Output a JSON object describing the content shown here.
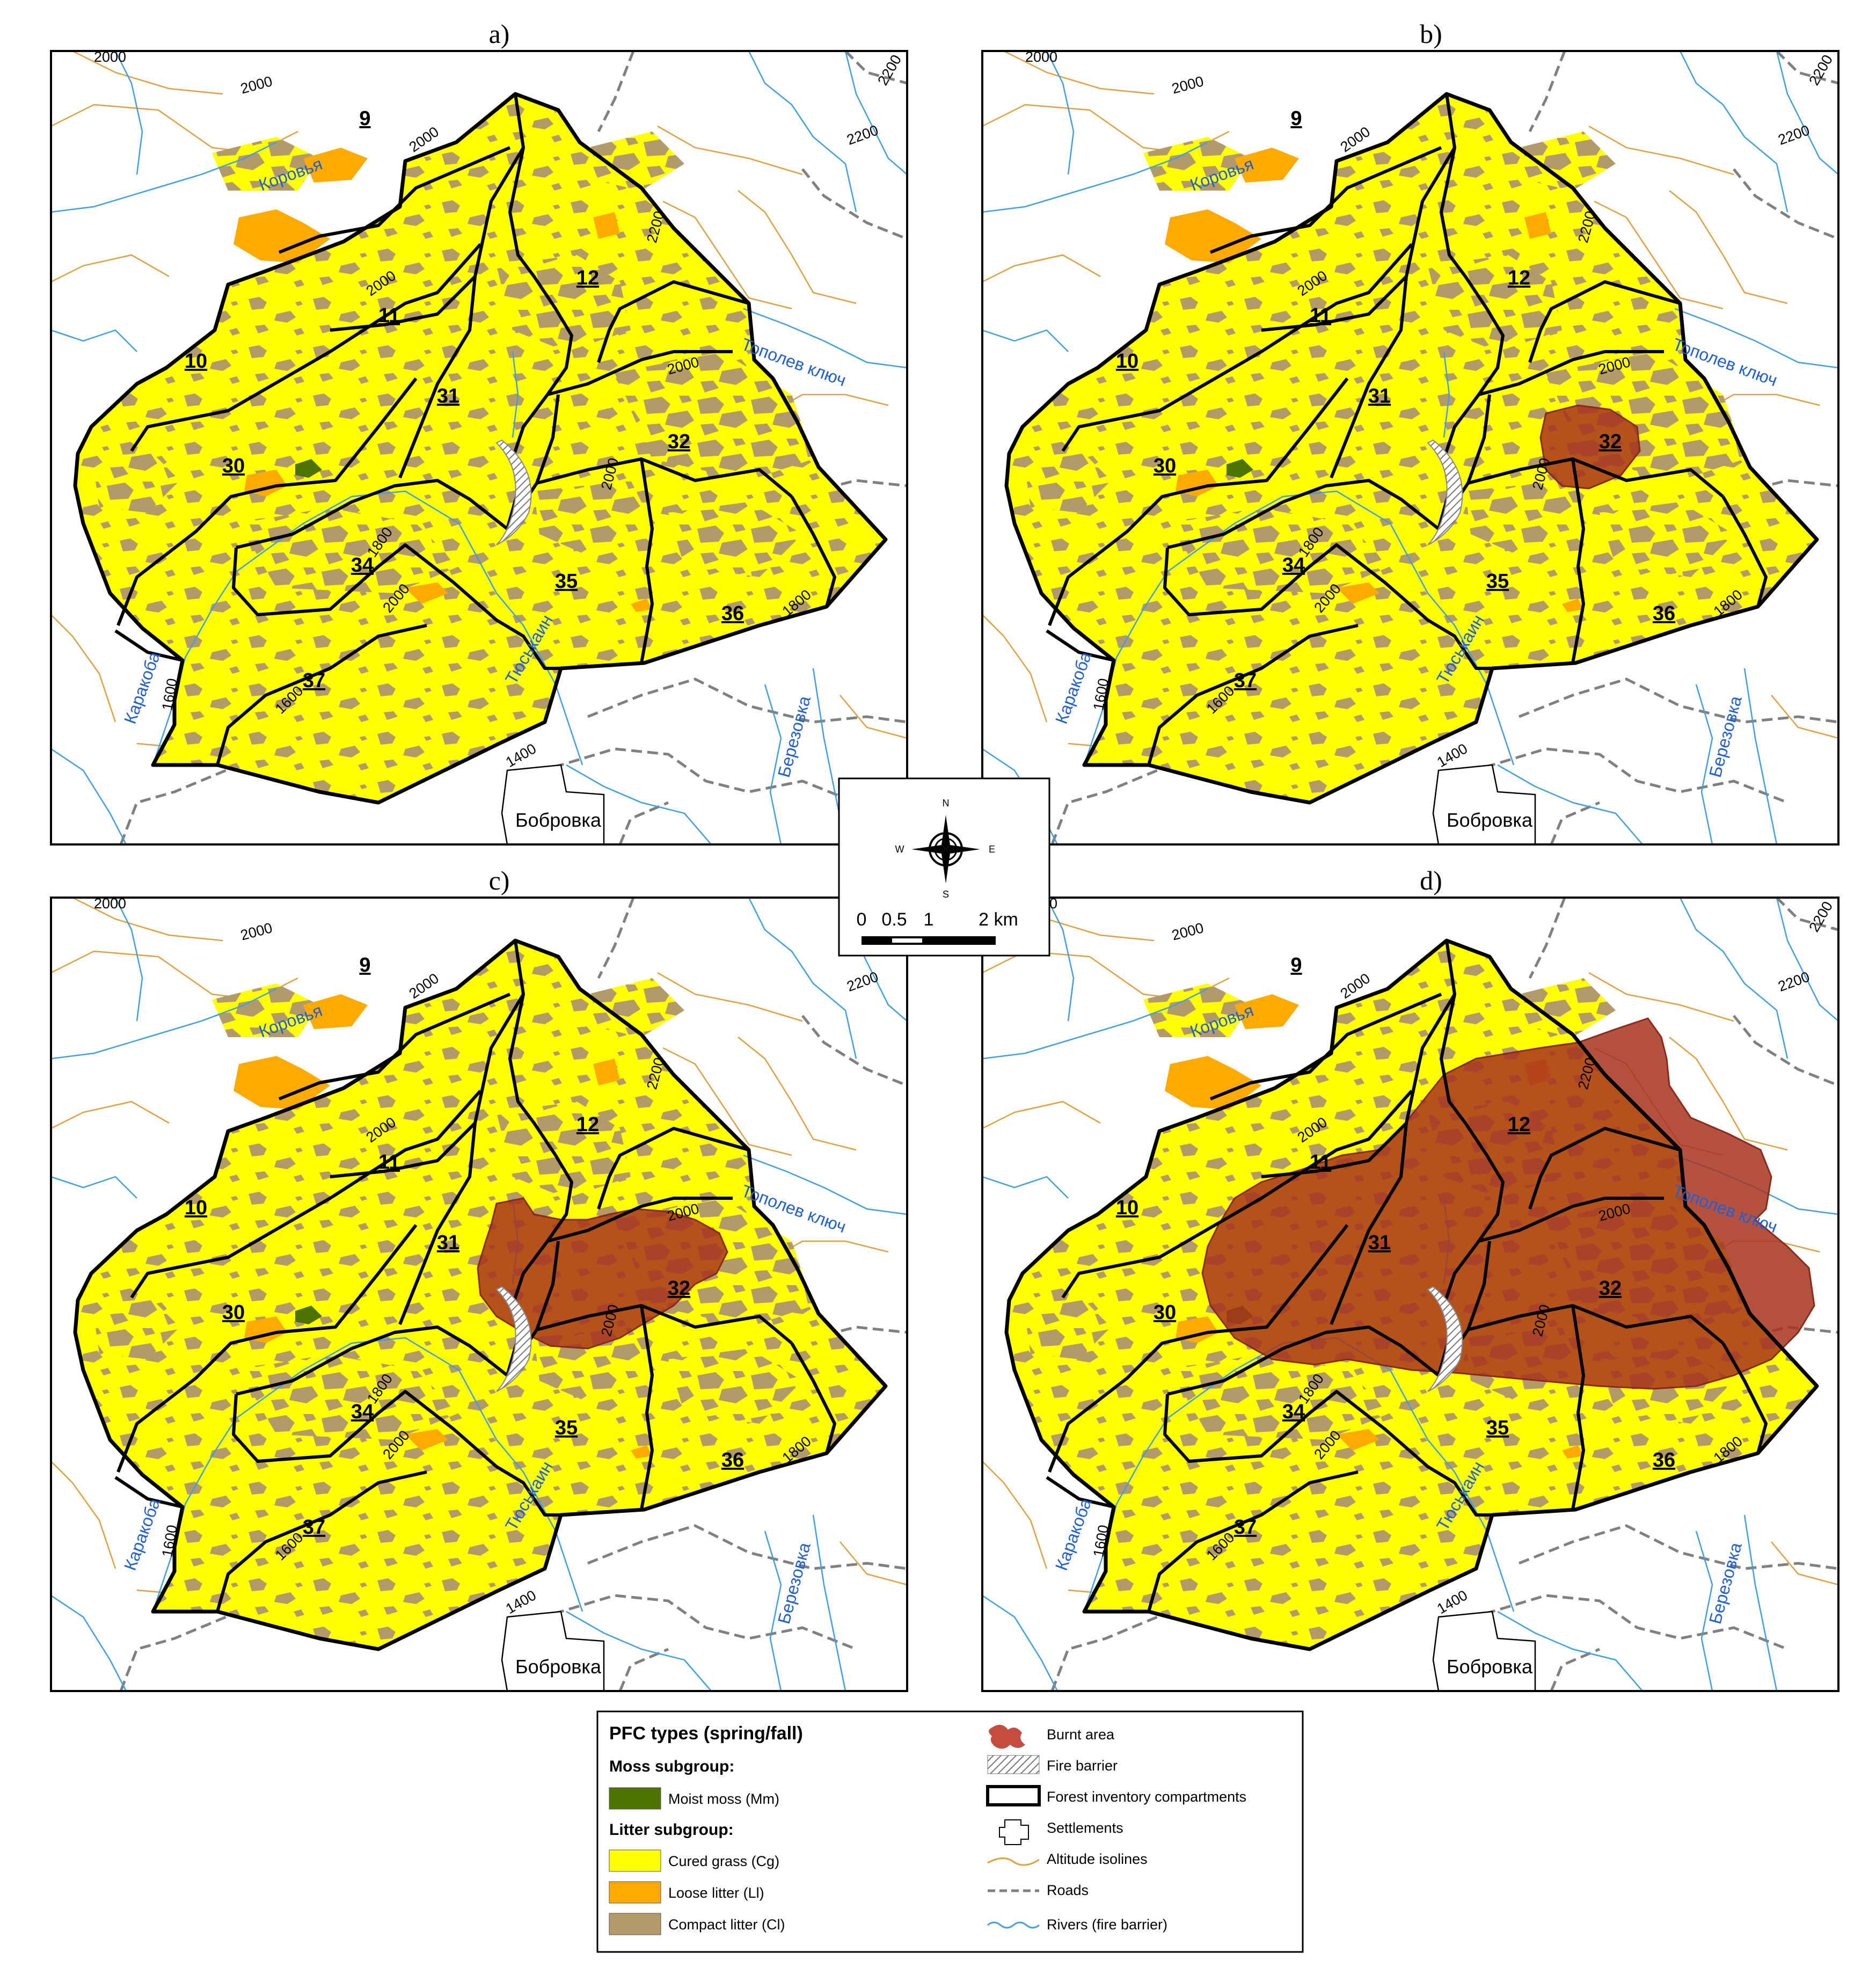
{
  "panels": [
    {
      "id": "a",
      "label": "a)",
      "burn": "none"
    },
    {
      "id": "b",
      "label": "b)",
      "burn": "small"
    },
    {
      "id": "c",
      "label": "c)",
      "burn": "medium"
    },
    {
      "id": "d",
      "label": "d)",
      "burn": "large"
    }
  ],
  "compartments": [
    "9",
    "10",
    "11",
    "12",
    "30",
    "31",
    "32",
    "34",
    "35",
    "36",
    "37"
  ],
  "isolines": [
    "2000",
    "2000",
    "2200",
    "2200",
    "2000",
    "2000",
    "2200",
    "2000",
    "2000",
    "1800",
    "2000",
    "1800",
    "1600",
    "1600",
    "1400"
  ],
  "rivers": {
    "korovya": "Коровья",
    "topolev": "Тополев ключ",
    "karakoba": "Каракоба",
    "tyuskain": "Тюськаин",
    "berezovka": "Березовка"
  },
  "settlement": "Бобровка",
  "compass": {
    "n": "N",
    "s": "S",
    "e": "E",
    "w": "W"
  },
  "scale": {
    "labels": [
      "0",
      "0.5",
      "1",
      "2 km"
    ]
  },
  "legend": {
    "title": "PFC types (spring/fall)",
    "moss_subgroup": "Moss subgroup:",
    "moist_moss": "Moist moss (Mm)",
    "litter_subgroup": "Litter subgroup:",
    "cured_grass": "Cured grass (Cg)",
    "loose_litter": "Loose litter (Ll)",
    "compact_litter": "Compact litter (Cl)",
    "burnt_area": "Burnt area",
    "fire_barrier": "Fire barrier",
    "compartments": "Forest inventory compartments",
    "settlements": "Settlements",
    "isolines": "Altitude isolines",
    "roads": "Roads",
    "rivers": "Rivers (fire barrier)"
  },
  "colors": {
    "cured_grass": "#ffff00",
    "loose_litter": "#ffaa00",
    "compact_litter": "#b39a6a",
    "moist_moss": "#4c7300",
    "burnt": "#a8321f",
    "river": "#3f9fe0",
    "isoline": "#e0a040",
    "road": "#808080"
  }
}
